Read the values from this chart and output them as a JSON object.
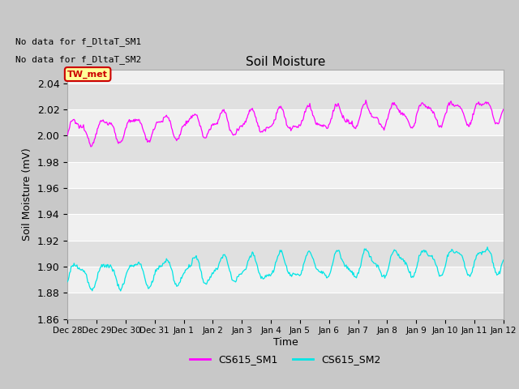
{
  "title": "Soil Moisture",
  "ylabel": "Soil Moisture (mV)",
  "xlabel": "Time",
  "ylim": [
    1.86,
    2.05
  ],
  "yticks": [
    1.86,
    1.88,
    1.9,
    1.92,
    1.94,
    1.96,
    1.98,
    2.0,
    2.02,
    2.04
  ],
  "xtick_labels": [
    "Dec 28",
    "Dec 29",
    "Dec 30",
    "Dec 31",
    "Jan 1",
    "Jan 2",
    "Jan 3",
    "Jan 4",
    "Jan 5",
    "Jan 6",
    "Jan 7",
    "Jan 8",
    "Jan 9",
    "Jan 10",
    "Jan 11",
    "Jan 12"
  ],
  "no_data_text1": "No data for f_DltaT_SM1",
  "no_data_text2": "No data for f_DltaT_SM2",
  "tw_met_label": "TW_met",
  "tw_met_color": "#cc0000",
  "tw_met_bg": "#ffff99",
  "legend_entries": [
    "CS615_SM1",
    "CS615_SM2"
  ],
  "line1_color": "#ff00ff",
  "line2_color": "#00e5e5",
  "fig_bg_color": "#c8c8c8",
  "plot_bg_light": "#f0f0f0",
  "plot_bg_dark": "#e0e0e0",
  "grid_color": "#ffffff",
  "n_points": 600,
  "sm1_base": 2.003,
  "sm1_amp": 0.008,
  "sm1_trend": 2.8e-05,
  "sm2_base": 1.893,
  "sm2_amp": 0.009,
  "sm2_trend": 2.2e-05
}
